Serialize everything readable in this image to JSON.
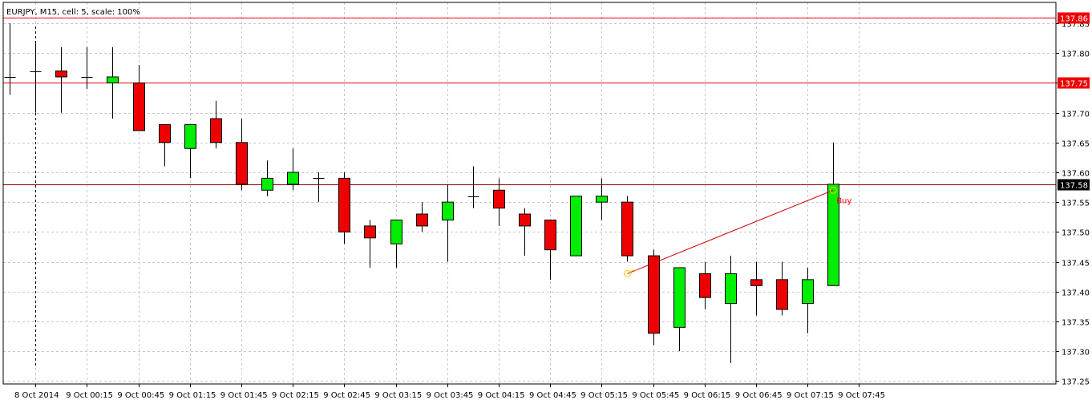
{
  "window": {
    "title": "EURJPY, M15, cell: 5, scale: 100%"
  },
  "colors": {
    "background": "#ffffff",
    "grid": "#c8c8c8",
    "bull": "#00ee00",
    "bear": "#ee0000",
    "wick": "#000000",
    "level_line": "#ee0000",
    "price_line": "#880000",
    "level_label_bg": "#ee0000",
    "price_label_bg": "#000000",
    "trade_line": "#cc0000",
    "trade_marker": "#ffcc00",
    "trade_text": "#ee0000"
  },
  "chart_data": {
    "type": "candlestick",
    "symbol": "EURJPY",
    "timeframe": "M15",
    "ylim": [
      137.245,
      137.885
    ],
    "y_ticks": [
      "137.85",
      "137.80",
      "137.75",
      "137.70",
      "137.65",
      "137.60",
      "137.55",
      "137.50",
      "137.45",
      "137.40",
      "137.35",
      "137.30",
      "137.25"
    ],
    "x_ticks": [
      {
        "label": "8 Oct 2014",
        "index": 0
      },
      {
        "label": "9 Oct 00:15",
        "index": 2
      },
      {
        "label": "9 Oct 00:45",
        "index": 4
      },
      {
        "label": "9 Oct 01:15",
        "index": 6
      },
      {
        "label": "9 Oct 01:45",
        "index": 8
      },
      {
        "label": "9 Oct 02:15",
        "index": 10
      },
      {
        "label": "9 Oct 02:45",
        "index": 12
      },
      {
        "label": "9 Oct 03:15",
        "index": 14
      },
      {
        "label": "9 Oct 03:45",
        "index": 16
      },
      {
        "label": "9 Oct 04:15",
        "index": 18
      },
      {
        "label": "9 Oct 04:45",
        "index": 20
      },
      {
        "label": "9 Oct 05:15",
        "index": 22
      },
      {
        "label": "9 Oct 05:45",
        "index": 24
      },
      {
        "label": "9 Oct 06:15",
        "index": 26
      },
      {
        "label": "9 Oct 06:45",
        "index": 28
      },
      {
        "label": "9 Oct 07:15",
        "index": 30
      },
      {
        "label": "9 Oct 07:45",
        "index": 32
      }
    ],
    "candles": [
      {
        "o": 137.76,
        "h": 137.85,
        "l": 137.73,
        "c": 137.76
      },
      {
        "o": 137.77,
        "h": 137.82,
        "l": 137.7,
        "c": 137.77
      },
      {
        "o": 137.77,
        "h": 137.81,
        "l": 137.7,
        "c": 137.76
      },
      {
        "o": 137.76,
        "h": 137.81,
        "l": 137.74,
        "c": 137.76
      },
      {
        "o": 137.75,
        "h": 137.81,
        "l": 137.69,
        "c": 137.76
      },
      {
        "o": 137.75,
        "h": 137.78,
        "l": 137.67,
        "c": 137.67
      },
      {
        "o": 137.68,
        "h": 137.68,
        "l": 137.61,
        "c": 137.65
      },
      {
        "o": 137.64,
        "h": 137.68,
        "l": 137.59,
        "c": 137.68
      },
      {
        "o": 137.69,
        "h": 137.72,
        "l": 137.64,
        "c": 137.65
      },
      {
        "o": 137.65,
        "h": 137.69,
        "l": 137.57,
        "c": 137.58
      },
      {
        "o": 137.57,
        "h": 137.62,
        "l": 137.56,
        "c": 137.59
      },
      {
        "o": 137.58,
        "h": 137.64,
        "l": 137.57,
        "c": 137.6
      },
      {
        "o": 137.59,
        "h": 137.6,
        "l": 137.55,
        "c": 137.59
      },
      {
        "o": 137.59,
        "h": 137.6,
        "l": 137.48,
        "c": 137.5
      },
      {
        "o": 137.51,
        "h": 137.52,
        "l": 137.44,
        "c": 137.49
      },
      {
        "o": 137.48,
        "h": 137.52,
        "l": 137.44,
        "c": 137.52
      },
      {
        "o": 137.53,
        "h": 137.55,
        "l": 137.5,
        "c": 137.51
      },
      {
        "o": 137.52,
        "h": 137.58,
        "l": 137.45,
        "c": 137.55
      },
      {
        "o": 137.56,
        "h": 137.61,
        "l": 137.54,
        "c": 137.56
      },
      {
        "o": 137.57,
        "h": 137.59,
        "l": 137.51,
        "c": 137.54
      },
      {
        "o": 137.53,
        "h": 137.54,
        "l": 137.46,
        "c": 137.51
      },
      {
        "o": 137.52,
        "h": 137.52,
        "l": 137.42,
        "c": 137.47
      },
      {
        "o": 137.46,
        "h": 137.56,
        "l": 137.46,
        "c": 137.56
      },
      {
        "o": 137.55,
        "h": 137.59,
        "l": 137.52,
        "c": 137.56
      },
      {
        "o": 137.55,
        "h": 137.56,
        "l": 137.45,
        "c": 137.46
      },
      {
        "o": 137.46,
        "h": 137.47,
        "l": 137.31,
        "c": 137.33
      },
      {
        "o": 137.34,
        "h": 137.44,
        "l": 137.3,
        "c": 137.44
      },
      {
        "o": 137.43,
        "h": 137.45,
        "l": 137.37,
        "c": 137.39
      },
      {
        "o": 137.38,
        "h": 137.46,
        "l": 137.28,
        "c": 137.43
      },
      {
        "o": 137.42,
        "h": 137.45,
        "l": 137.36,
        "c": 137.41
      },
      {
        "o": 137.42,
        "h": 137.45,
        "l": 137.36,
        "c": 137.37
      },
      {
        "o": 137.38,
        "h": 137.44,
        "l": 137.33,
        "c": 137.42
      },
      {
        "o": 137.41,
        "h": 137.65,
        "l": 137.41,
        "c": 137.58
      }
    ],
    "grid": true,
    "separator_index": 0.5,
    "levels": [
      {
        "price": 137.86,
        "label": "137.86",
        "kind": "level"
      },
      {
        "price": 137.75,
        "label": "137.75",
        "kind": "level"
      },
      {
        "price": 137.58,
        "label": "137.58",
        "kind": "price"
      }
    ],
    "trade": {
      "from": {
        "index": 24,
        "price": 137.43
      },
      "to": {
        "index": 32,
        "price": 137.57
      },
      "label": "Buy"
    }
  }
}
